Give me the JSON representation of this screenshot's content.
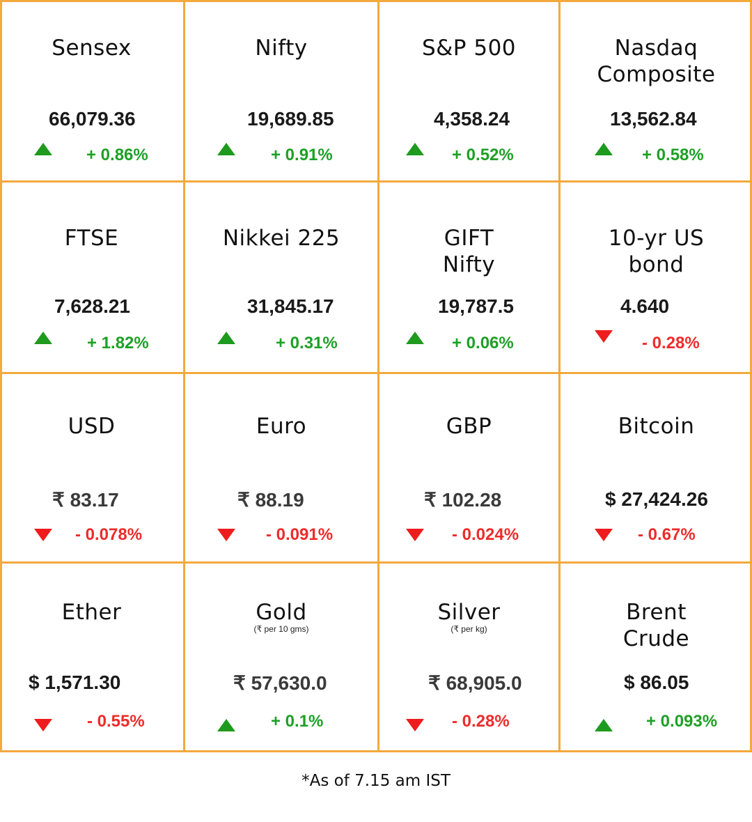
{
  "colors": {
    "border": "#f3a93c",
    "up": "#1ea026",
    "down": "#ee2b2b"
  },
  "footer": "*As of 7.15 am IST",
  "cells": [
    {
      "title_lines": [
        "Sensex"
      ],
      "value": "66,079.36",
      "change": "+ 0.86%",
      "direction": "up"
    },
    {
      "title_lines": [
        "Nifty"
      ],
      "value": "19,689.85",
      "change": "+ 0.91%",
      "direction": "up"
    },
    {
      "title_lines": [
        "S&P 500"
      ],
      "value": "4,358.24",
      "change": "+ 0.52%",
      "direction": "up"
    },
    {
      "title_lines": [
        "Nasdaq",
        "Composite"
      ],
      "value": "13,562.84",
      "change": "+ 0.58%",
      "direction": "up"
    },
    {
      "title_lines": [
        "FTSE"
      ],
      "value": "7,628.21",
      "change": "+ 1.82%",
      "direction": "up"
    },
    {
      "title_lines": [
        "Nikkei 225"
      ],
      "value": "31,845.17",
      "change": "+ 0.31%",
      "direction": "up"
    },
    {
      "title_lines": [
        "GIFT",
        "Nifty"
      ],
      "value": "19,787.5",
      "change": "+ 0.06%",
      "direction": "up"
    },
    {
      "title_lines": [
        "10-yr US",
        "bond"
      ],
      "value": "4.640",
      "change": "- 0.28%",
      "direction": "down"
    },
    {
      "title_lines": [
        "USD"
      ],
      "value": "₹ 83.17",
      "change": "- 0.078%",
      "direction": "down"
    },
    {
      "title_lines": [
        "Euro"
      ],
      "value": "₹ 88.19",
      "change": "- 0.091%",
      "direction": "down"
    },
    {
      "title_lines": [
        "GBP"
      ],
      "value": "₹ 102.28",
      "change": "- 0.024%",
      "direction": "down"
    },
    {
      "title_lines": [
        "Bitcoin"
      ],
      "value": "$ 27,424.26",
      "change": "- 0.67%",
      "direction": "down"
    },
    {
      "title_lines": [
        "Ether"
      ],
      "value": "$ 1,571.30",
      "change": "- 0.55%",
      "direction": "down"
    },
    {
      "title_lines": [
        "Gold"
      ],
      "subtitle": "(₹ per 10 gms)",
      "value": "₹ 57,630.0",
      "change": "+ 0.1%",
      "direction": "up"
    },
    {
      "title_lines": [
        "Silver"
      ],
      "subtitle": "(₹ per kg)",
      "value": "₹ 68,905.0",
      "change": "- 0.28%",
      "direction": "down"
    },
    {
      "title_lines": [
        "Brent",
        "Crude"
      ],
      "value": "$ 86.05",
      "change": "+ 0.093%",
      "direction": "up"
    }
  ]
}
